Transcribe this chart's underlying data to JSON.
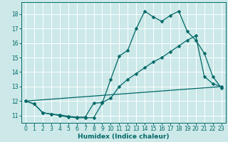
{
  "bg_color": "#cce8e8",
  "grid_color": "#ffffff",
  "line_color": "#006868",
  "xlabel": "Humidex (Indice chaleur)",
  "xlim": [
    -0.5,
    23.5
  ],
  "ylim": [
    10.5,
    18.8
  ],
  "xticks": [
    0,
    1,
    2,
    3,
    4,
    5,
    6,
    7,
    8,
    9,
    10,
    11,
    12,
    13,
    14,
    15,
    16,
    17,
    18,
    19,
    20,
    21,
    22,
    23
  ],
  "yticks": [
    11,
    12,
    13,
    14,
    15,
    16,
    17,
    18
  ],
  "line1_x": [
    0,
    1,
    2,
    3,
    4,
    5,
    6,
    7,
    8,
    9,
    10,
    11,
    12,
    13,
    14,
    15,
    16,
    17,
    18,
    19,
    20,
    21,
    22,
    23
  ],
  "line1_y": [
    12.0,
    11.8,
    11.2,
    11.1,
    11.0,
    10.9,
    10.85,
    10.85,
    10.85,
    11.85,
    13.5,
    15.1,
    15.5,
    17.0,
    18.2,
    17.8,
    17.5,
    17.9,
    18.2,
    16.8,
    16.2,
    15.3,
    13.7,
    12.9
  ],
  "line2_x": [
    0,
    1,
    2,
    3,
    4,
    5,
    6,
    7,
    8,
    9,
    10,
    11,
    12,
    13,
    14,
    15,
    16,
    17,
    18,
    19,
    20,
    21,
    22,
    23
  ],
  "line2_y": [
    12.0,
    11.8,
    11.2,
    11.1,
    11.05,
    10.95,
    10.9,
    10.9,
    11.85,
    11.9,
    12.2,
    13.0,
    13.5,
    13.9,
    14.3,
    14.7,
    15.0,
    15.4,
    15.8,
    16.2,
    16.5,
    13.7,
    13.2,
    13.0
  ],
  "line3_x": [
    0,
    23
  ],
  "line3_y": [
    12.0,
    13.0
  ],
  "markersize": 2.5,
  "xlabel_fontsize": 6.5,
  "tick_fontsize": 5.5
}
